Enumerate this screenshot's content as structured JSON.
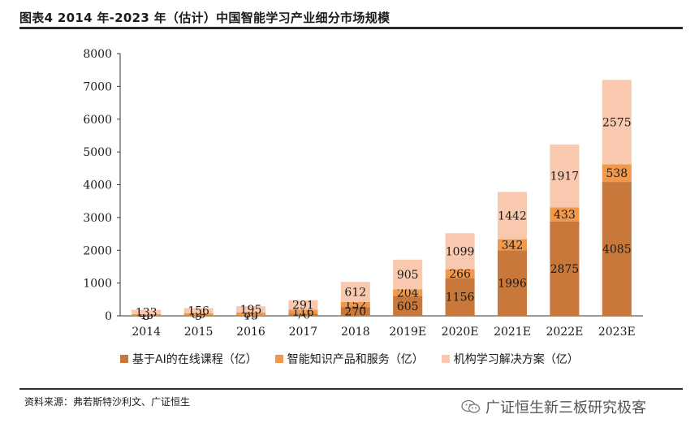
{
  "title": "图表4 2014 年-2023 年（估计）中国智能学习产业细分市场规模",
  "source": "资料来源：弗若斯特沙利文、广证恒生",
  "watermark": "广证恒生新三板研究极客",
  "colors": {
    "s0": "#C7783A",
    "s1": "#F0994C",
    "s2": "#F8C9AE"
  },
  "chart_data": {
    "type": "bar",
    "stacked": true,
    "categories": [
      "2014",
      "2015",
      "2016",
      "2017",
      "2018",
      "2019E",
      "2020E",
      "2021E",
      "2022E",
      "2023E"
    ],
    "series": [
      {
        "name": "基于AI的在线课程（亿）",
        "values": [
          5,
          9,
          13,
          70,
          270,
          605,
          1156,
          1996,
          2875,
          4085
        ]
      },
      {
        "name": "智能知识产品和服务（亿）",
        "values": [
          45,
          69,
          86,
          116,
          152,
          204,
          266,
          342,
          433,
          538
        ]
      },
      {
        "name": "机构学习解决方案（亿）",
        "values": [
          133,
          156,
          195,
          291,
          612,
          905,
          1099,
          1442,
          1917,
          2575
        ]
      }
    ],
    "ylim": [
      0,
      8000
    ],
    "yticks": [
      "0",
      "1000",
      "2000",
      "3000",
      "4000",
      "5000",
      "6000",
      "7000",
      "8000"
    ],
    "grid": false,
    "legend_position": "bottom"
  }
}
